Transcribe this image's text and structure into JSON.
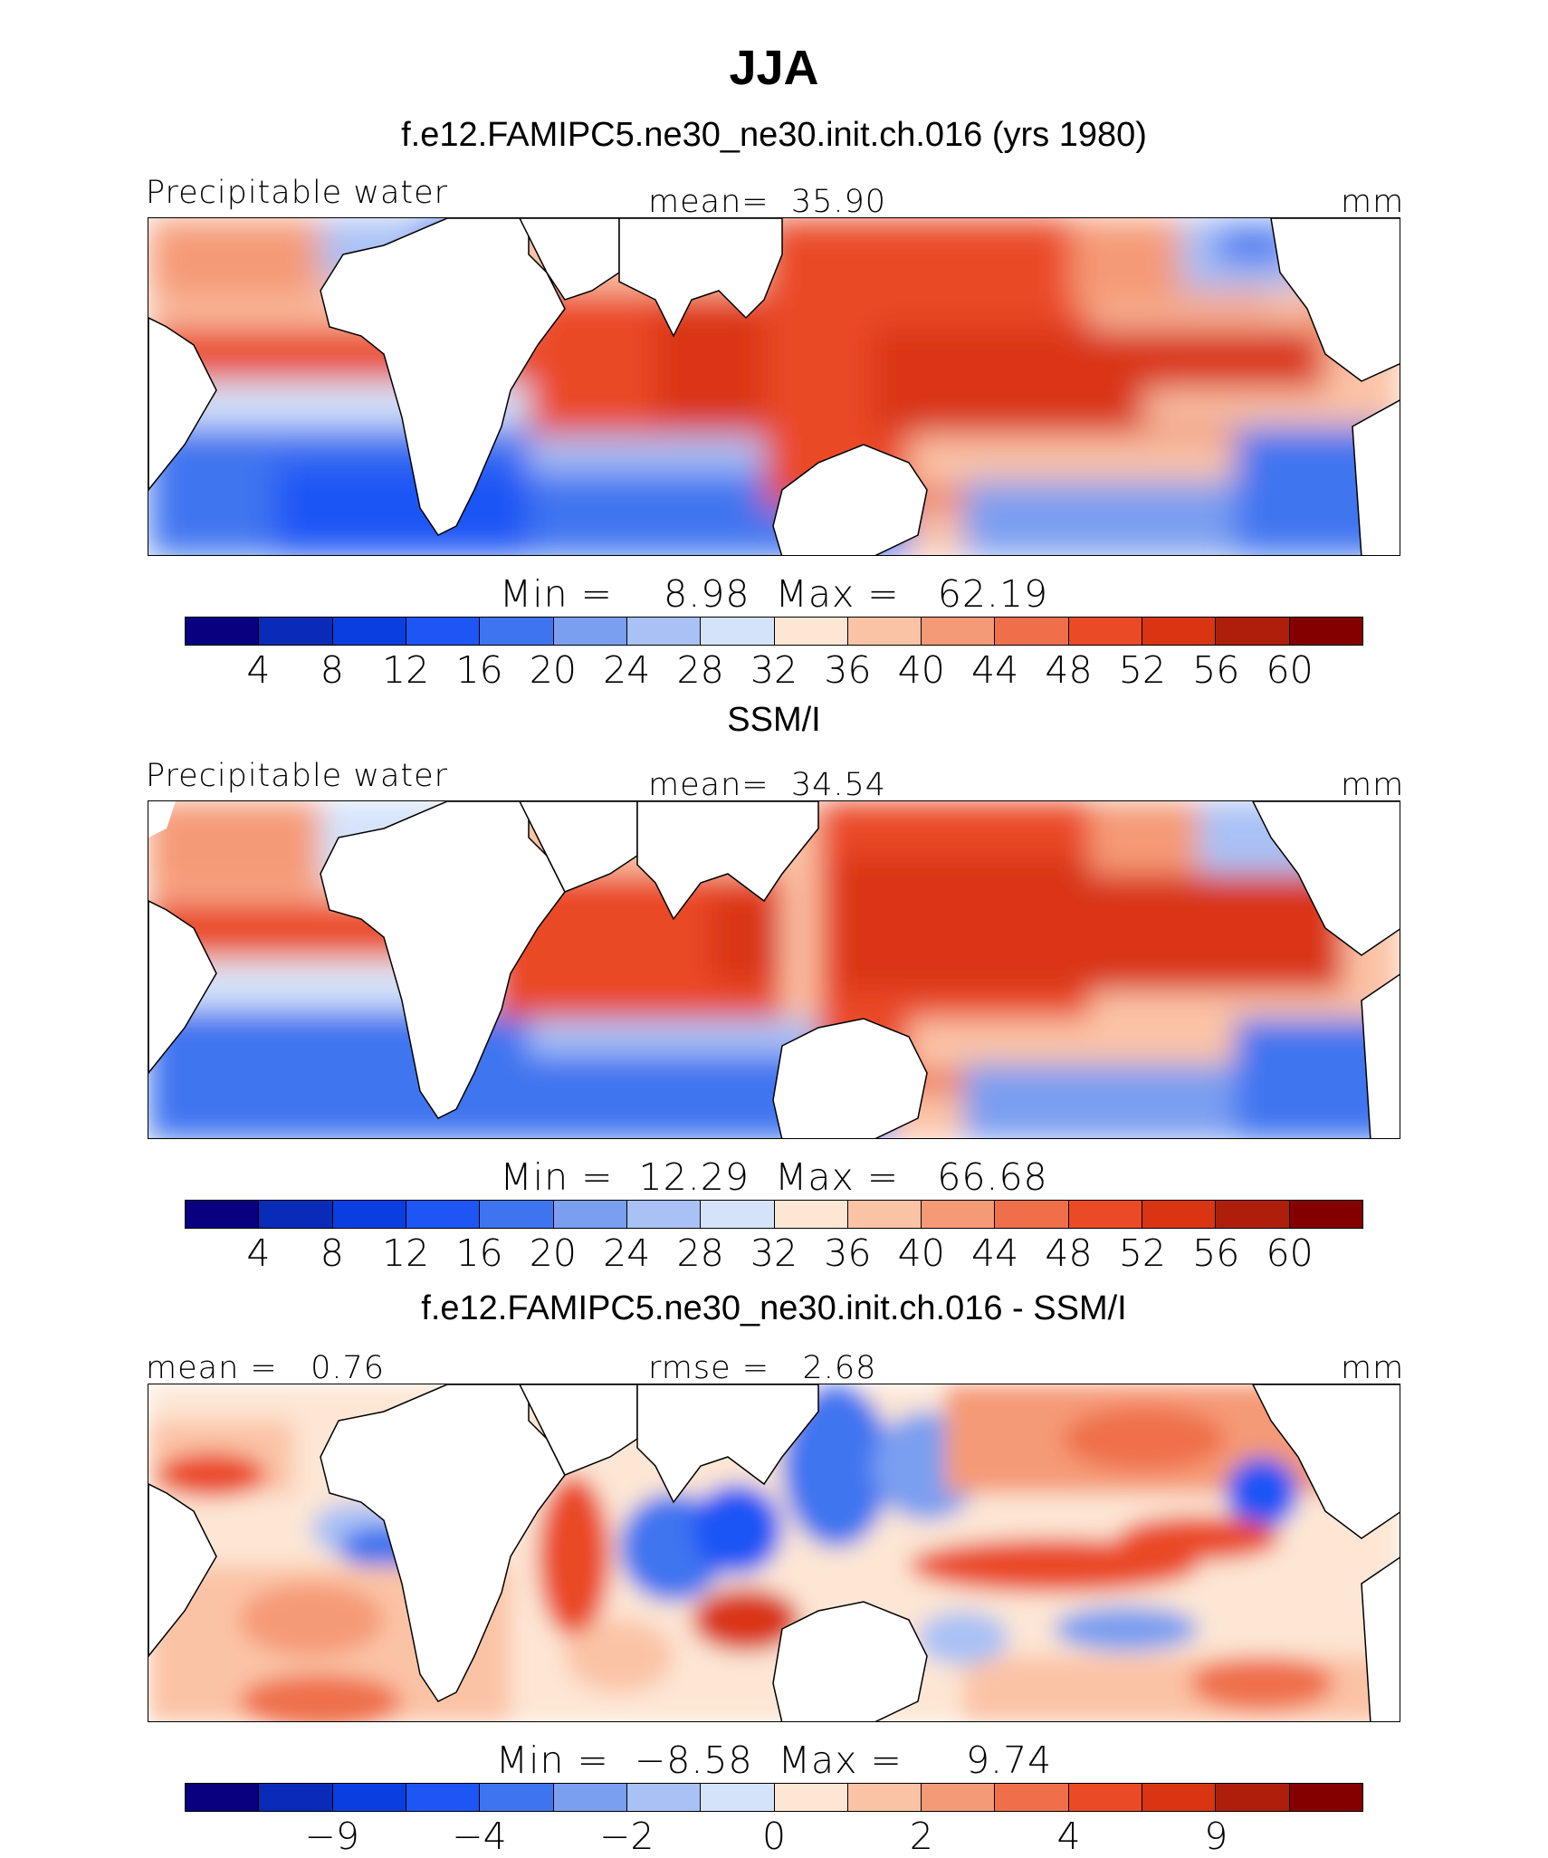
{
  "title": "JJA",
  "palette": [
    "#08007f",
    "#0a2bb8",
    "#0a3ee0",
    "#1e55f5",
    "#3f74f0",
    "#7a9ef0",
    "#a9c1f5",
    "#d4e3fa",
    "#fde6d4",
    "#fbc3a6",
    "#f59a76",
    "#ef6f4b",
    "#ea4a26",
    "#d93512",
    "#ae1e0a",
    "#840000"
  ],
  "panels": [
    {
      "title": "f.e12.FAMIPC5.ne30_ne30.init.ch.016 (yrs 1980)",
      "left_label": "Precipitable water",
      "center_label": "mean=  35.90",
      "units": "mm",
      "stats": "Min =    8.98  Max =   62.19",
      "colorbar_ticks": [
        "4",
        "8",
        "12",
        "16",
        "20",
        "24",
        "28",
        "32",
        "36",
        "40",
        "44",
        "48",
        "52",
        "56",
        "60"
      ],
      "tick_mode": "all"
    },
    {
      "title": "SSM/I",
      "left_label": "Precipitable water",
      "center_label": "mean=  34.54",
      "units": "mm",
      "stats": "Min =  12.29  Max =   66.68",
      "colorbar_ticks": [
        "4",
        "8",
        "12",
        "16",
        "20",
        "24",
        "28",
        "32",
        "36",
        "40",
        "44",
        "48",
        "52",
        "56",
        "60"
      ],
      "tick_mode": "all"
    },
    {
      "title": "f.e12.FAMIPC5.ne30_ne30.init.ch.016 - SSM/I",
      "left_label": "mean =   0.76",
      "center_label": "rmse =   2.68",
      "units": "mm",
      "stats": "Min =  −8.58  Max =     9.74",
      "colorbar_ticks": [
        "−9",
        "−4",
        "−2",
        "0",
        "2",
        "4",
        "9"
      ],
      "tick_mode": "diff"
    }
  ]
}
